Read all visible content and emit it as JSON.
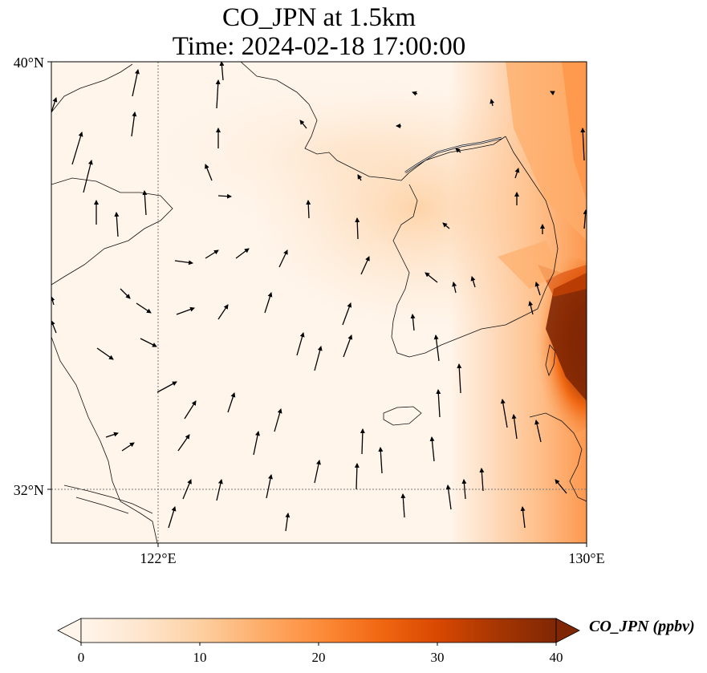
{
  "title": {
    "line1": "CO_JPN at 1.5km",
    "line2": "Time: 2024-02-18 17:00:00"
  },
  "axes": {
    "lon_range": [
      119,
      131
    ],
    "lat_range": [
      30.8,
      40.0
    ],
    "lon_ticks": [
      "122°E",
      "130°E"
    ],
    "lat_ticks": [
      "40°N",
      "32°N"
    ],
    "gridlines": "dotted at 122°E and 32°N"
  },
  "colorbar": {
    "label": "CO_JPN (ppbv)",
    "min": 0,
    "max": 40,
    "ticks": [
      "0",
      "10",
      "20",
      "30",
      "40"
    ],
    "extend": "both",
    "colormap": [
      "#fff5eb",
      "#fee6ce",
      "#fdd0a2",
      "#fdae6b",
      "#fd8d3c",
      "#f16913",
      "#d94801",
      "#a63603",
      "#7f2704"
    ]
  },
  "colors": {
    "coastline": "#111111",
    "gridline": "#777777",
    "arrow": "#000000"
  },
  "field_description": "CO concentration highest (>35 ppbv) along the east coast of Korea near 129-130°E, 34-36°N; moderate (10-20) plume over central Korea and Yellow Sea; low (<5) elsewhere",
  "wind_vectors": "mostly northward/southerly winds with northwesterly flow over northern China"
}
